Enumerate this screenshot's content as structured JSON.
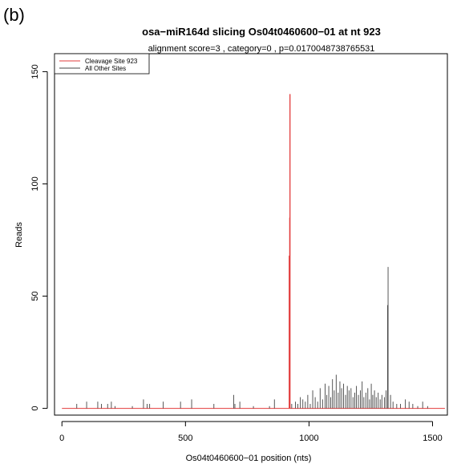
{
  "panel_label": "(b)",
  "chart_data": {
    "type": "line",
    "title": "osa−miR164d slicing Os04t0460600−01 at nt 923",
    "subtitle": "alignment score=3 , category=0 , p=0.0170048738765531",
    "xlabel": "Os04t0460600−01 position (nts)",
    "ylabel": "Reads",
    "xlim": [
      -30,
      1560
    ],
    "ylim": [
      -3,
      158
    ],
    "xticks": [
      0,
      500,
      1000,
      1500
    ],
    "yticks": [
      0,
      50,
      100,
      150
    ],
    "grid": false,
    "legend_position": "top-left",
    "series": [
      {
        "name": "Cleavage Site 923",
        "color": "#e23b3b",
        "spikes": [
          [
            920,
            68
          ],
          [
            922,
            85
          ],
          [
            923,
            140
          ]
        ]
      },
      {
        "name": "All Other Sites",
        "color": "#444444",
        "spikes": [
          [
            60,
            2
          ],
          [
            100,
            3
          ],
          [
            145,
            3
          ],
          [
            160,
            2
          ],
          [
            185,
            2
          ],
          [
            200,
            3
          ],
          [
            215,
            1
          ],
          [
            285,
            1
          ],
          [
            330,
            4
          ],
          [
            345,
            2
          ],
          [
            355,
            2
          ],
          [
            410,
            3
          ],
          [
            480,
            3
          ],
          [
            525,
            4
          ],
          [
            615,
            2
          ],
          [
            695,
            6
          ],
          [
            700,
            2
          ],
          [
            720,
            3
          ],
          [
            775,
            1
          ],
          [
            840,
            1
          ],
          [
            860,
            4
          ],
          [
            930,
            2
          ],
          [
            945,
            3
          ],
          [
            955,
            2
          ],
          [
            965,
            5
          ],
          [
            975,
            4
          ],
          [
            985,
            3
          ],
          [
            995,
            6
          ],
          [
            1005,
            2
          ],
          [
            1015,
            8
          ],
          [
            1025,
            5
          ],
          [
            1035,
            3
          ],
          [
            1045,
            9
          ],
          [
            1055,
            4
          ],
          [
            1065,
            11
          ],
          [
            1072,
            6
          ],
          [
            1080,
            10
          ],
          [
            1088,
            5
          ],
          [
            1095,
            13
          ],
          [
            1102,
            8
          ],
          [
            1110,
            15
          ],
          [
            1118,
            7
          ],
          [
            1125,
            12
          ],
          [
            1132,
            9
          ],
          [
            1140,
            11
          ],
          [
            1148,
            6
          ],
          [
            1155,
            10
          ],
          [
            1162,
            8
          ],
          [
            1170,
            9
          ],
          [
            1178,
            5
          ],
          [
            1185,
            7
          ],
          [
            1192,
            10
          ],
          [
            1200,
            6
          ],
          [
            1208,
            8
          ],
          [
            1215,
            12
          ],
          [
            1222,
            5
          ],
          [
            1230,
            7
          ],
          [
            1238,
            9
          ],
          [
            1245,
            4
          ],
          [
            1252,
            11
          ],
          [
            1258,
            6
          ],
          [
            1265,
            8
          ],
          [
            1272,
            5
          ],
          [
            1280,
            7
          ],
          [
            1288,
            4
          ],
          [
            1295,
            6
          ],
          [
            1305,
            5
          ],
          [
            1312,
            8
          ],
          [
            1318,
            46
          ],
          [
            1320,
            63
          ],
          [
            1330,
            6
          ],
          [
            1340,
            3
          ],
          [
            1355,
            2
          ],
          [
            1370,
            2
          ],
          [
            1390,
            4
          ],
          [
            1405,
            3
          ],
          [
            1420,
            2
          ],
          [
            1440,
            1
          ],
          [
            1460,
            3
          ],
          [
            1480,
            1
          ]
        ]
      }
    ]
  }
}
